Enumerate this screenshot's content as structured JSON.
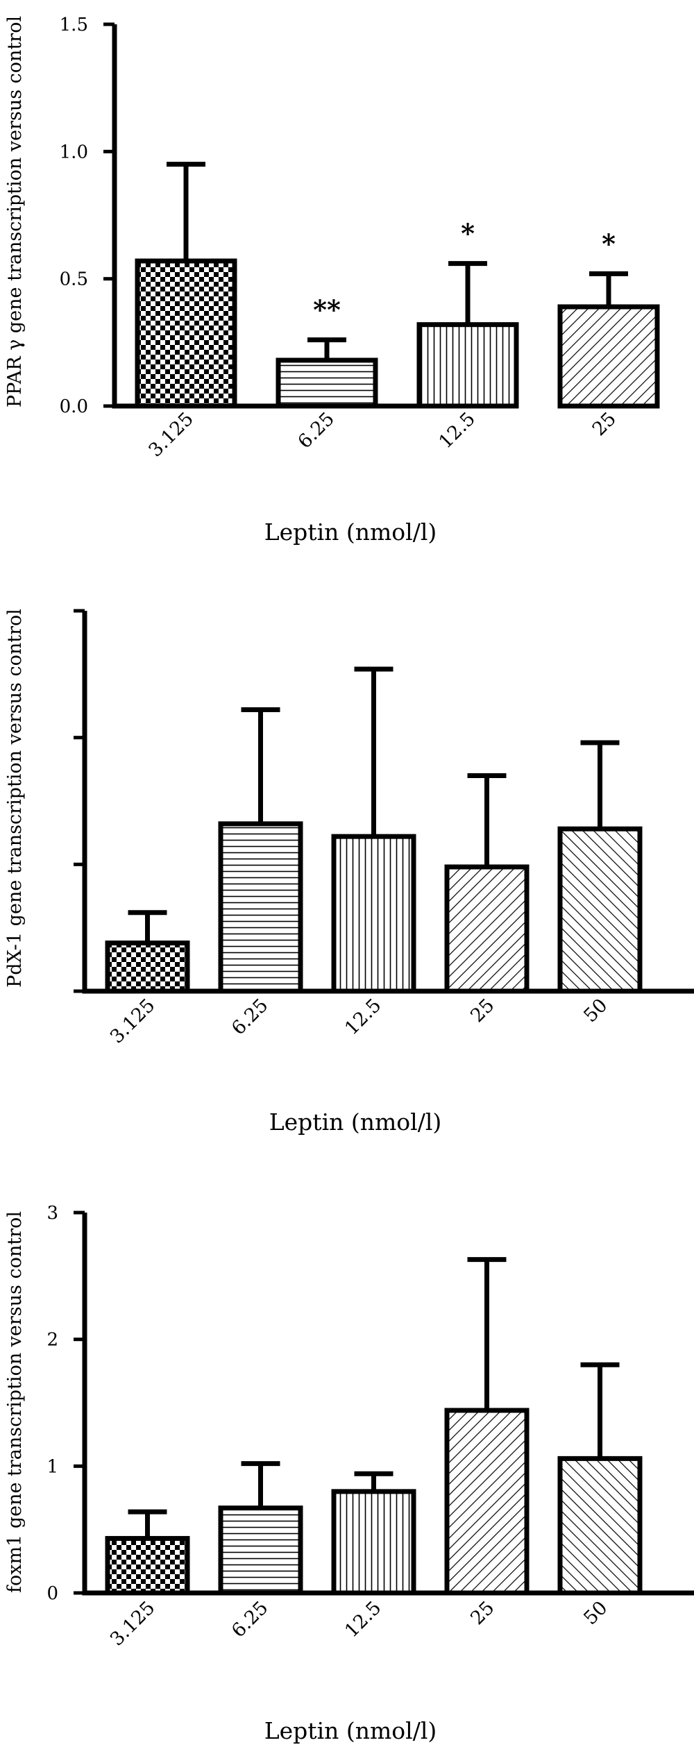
{
  "chart_data": [
    {
      "type": "bar",
      "xlabel": "Leptin (nmol/l)",
      "ylabel": "PPAR γ gene transcription versus control",
      "categories": [
        "3.125",
        "6.25",
        "12.5",
        "25"
      ],
      "values": [
        0.57,
        0.18,
        0.32,
        0.39
      ],
      "errors": [
        0.38,
        0.08,
        0.24,
        0.13
      ],
      "annotations": [
        "",
        "**",
        "*",
        "*"
      ],
      "patterns": [
        "checker",
        "hlines",
        "vlines",
        "diag"
      ],
      "ylim": [
        0,
        1.5
      ],
      "yticks": [
        0.0,
        0.5,
        1.0,
        1.5
      ],
      "ytick_labels": [
        "0.0",
        "0.5",
        "1.0",
        "1.5"
      ],
      "show_yticklabels": true,
      "grid": false
    },
    {
      "type": "bar",
      "xlabel": "Leptin (nmol/l)",
      "ylabel": "PdX-1 gene transcription versus control",
      "categories": [
        "3.125",
        "6.25",
        "12.5",
        "25",
        "50"
      ],
      "values": [
        0.38,
        1.32,
        1.22,
        0.98,
        1.28
      ],
      "errors": [
        0.24,
        0.9,
        1.32,
        0.72,
        0.68
      ],
      "annotations": [
        "",
        "",
        "",
        "",
        ""
      ],
      "patterns": [
        "checker",
        "hlines",
        "vlines",
        "diag",
        "diag2"
      ],
      "ylim": [
        0,
        3
      ],
      "yticks": [
        0,
        1,
        2,
        3
      ],
      "ytick_labels": [],
      "show_yticklabels": false,
      "grid": false
    },
    {
      "type": "bar",
      "xlabel": "Leptin (nmol/l)",
      "ylabel": "foxm1 gene transcription versus control",
      "categories": [
        "3.125",
        "6.25",
        "12.5",
        "25",
        "50"
      ],
      "values": [
        0.43,
        0.67,
        0.8,
        1.44,
        1.06
      ],
      "errors": [
        0.21,
        0.35,
        0.14,
        1.19,
        0.74
      ],
      "annotations": [
        "",
        "",
        "",
        "",
        ""
      ],
      "patterns": [
        "checker",
        "hlines",
        "vlines",
        "diag",
        "diag2"
      ],
      "ylim": [
        0,
        3
      ],
      "yticks": [
        0,
        1,
        2,
        3
      ],
      "ytick_labels": [
        "0",
        "1",
        "2",
        "3"
      ],
      "show_yticklabels": true,
      "grid": false
    }
  ]
}
